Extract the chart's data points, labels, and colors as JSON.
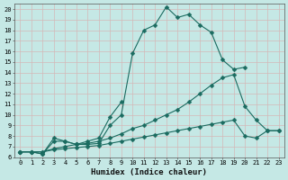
{
  "xlabel": "Humidex (Indice chaleur)",
  "xlim": [
    -0.5,
    23.5
  ],
  "ylim": [
    6,
    20.5
  ],
  "xticks": [
    0,
    1,
    2,
    3,
    4,
    5,
    6,
    7,
    8,
    9,
    10,
    11,
    12,
    13,
    14,
    15,
    16,
    17,
    18,
    19,
    20,
    21,
    22,
    23
  ],
  "yticks": [
    6,
    7,
    8,
    9,
    10,
    11,
    12,
    13,
    14,
    15,
    16,
    17,
    18,
    19,
    20
  ],
  "bg_color": "#c5e8e5",
  "line_color": "#1a6b60",
  "grid_color": "#d4b8b8",
  "line1_x": [
    0,
    1,
    2,
    3,
    4,
    5,
    6,
    7,
    8,
    9,
    10,
    11,
    12,
    13,
    14,
    15,
    16,
    17,
    18,
    19,
    20
  ],
  "line1_y": [
    6.5,
    6.5,
    6.3,
    7.5,
    7.5,
    7.2,
    7.2,
    7.3,
    9.0,
    10.0,
    15.8,
    18.0,
    18.5,
    20.2,
    19.2,
    19.5,
    18.5,
    17.8,
    15.2,
    14.3,
    14.5
  ],
  "line2_x": [
    0,
    1,
    2,
    3,
    4,
    5,
    6,
    7,
    8,
    9
  ],
  "line2_y": [
    6.5,
    6.5,
    6.3,
    7.8,
    7.5,
    7.2,
    7.5,
    7.8,
    9.8,
    11.2
  ],
  "line3_x": [
    0,
    1,
    2,
    3,
    4,
    5,
    6,
    7,
    8,
    9,
    10,
    11,
    12,
    13,
    14,
    15,
    16,
    17,
    18,
    19,
    20,
    21,
    22,
    23
  ],
  "line3_y": [
    6.5,
    6.5,
    6.5,
    6.8,
    7.0,
    7.2,
    7.3,
    7.5,
    7.8,
    8.2,
    8.7,
    9.0,
    9.5,
    10.0,
    10.5,
    11.2,
    12.0,
    12.8,
    13.5,
    13.8,
    10.8,
    9.5,
    8.5,
    8.5
  ],
  "line4_x": [
    0,
    1,
    2,
    3,
    4,
    5,
    6,
    7,
    8,
    9,
    10,
    11,
    12,
    13,
    14,
    15,
    16,
    17,
    18,
    19,
    20,
    21,
    22,
    23
  ],
  "line4_y": [
    6.5,
    6.5,
    6.5,
    6.7,
    6.8,
    6.9,
    7.0,
    7.1,
    7.3,
    7.5,
    7.7,
    7.9,
    8.1,
    8.3,
    8.5,
    8.7,
    8.9,
    9.1,
    9.3,
    9.5,
    8.0,
    7.8,
    8.5,
    8.5
  ]
}
